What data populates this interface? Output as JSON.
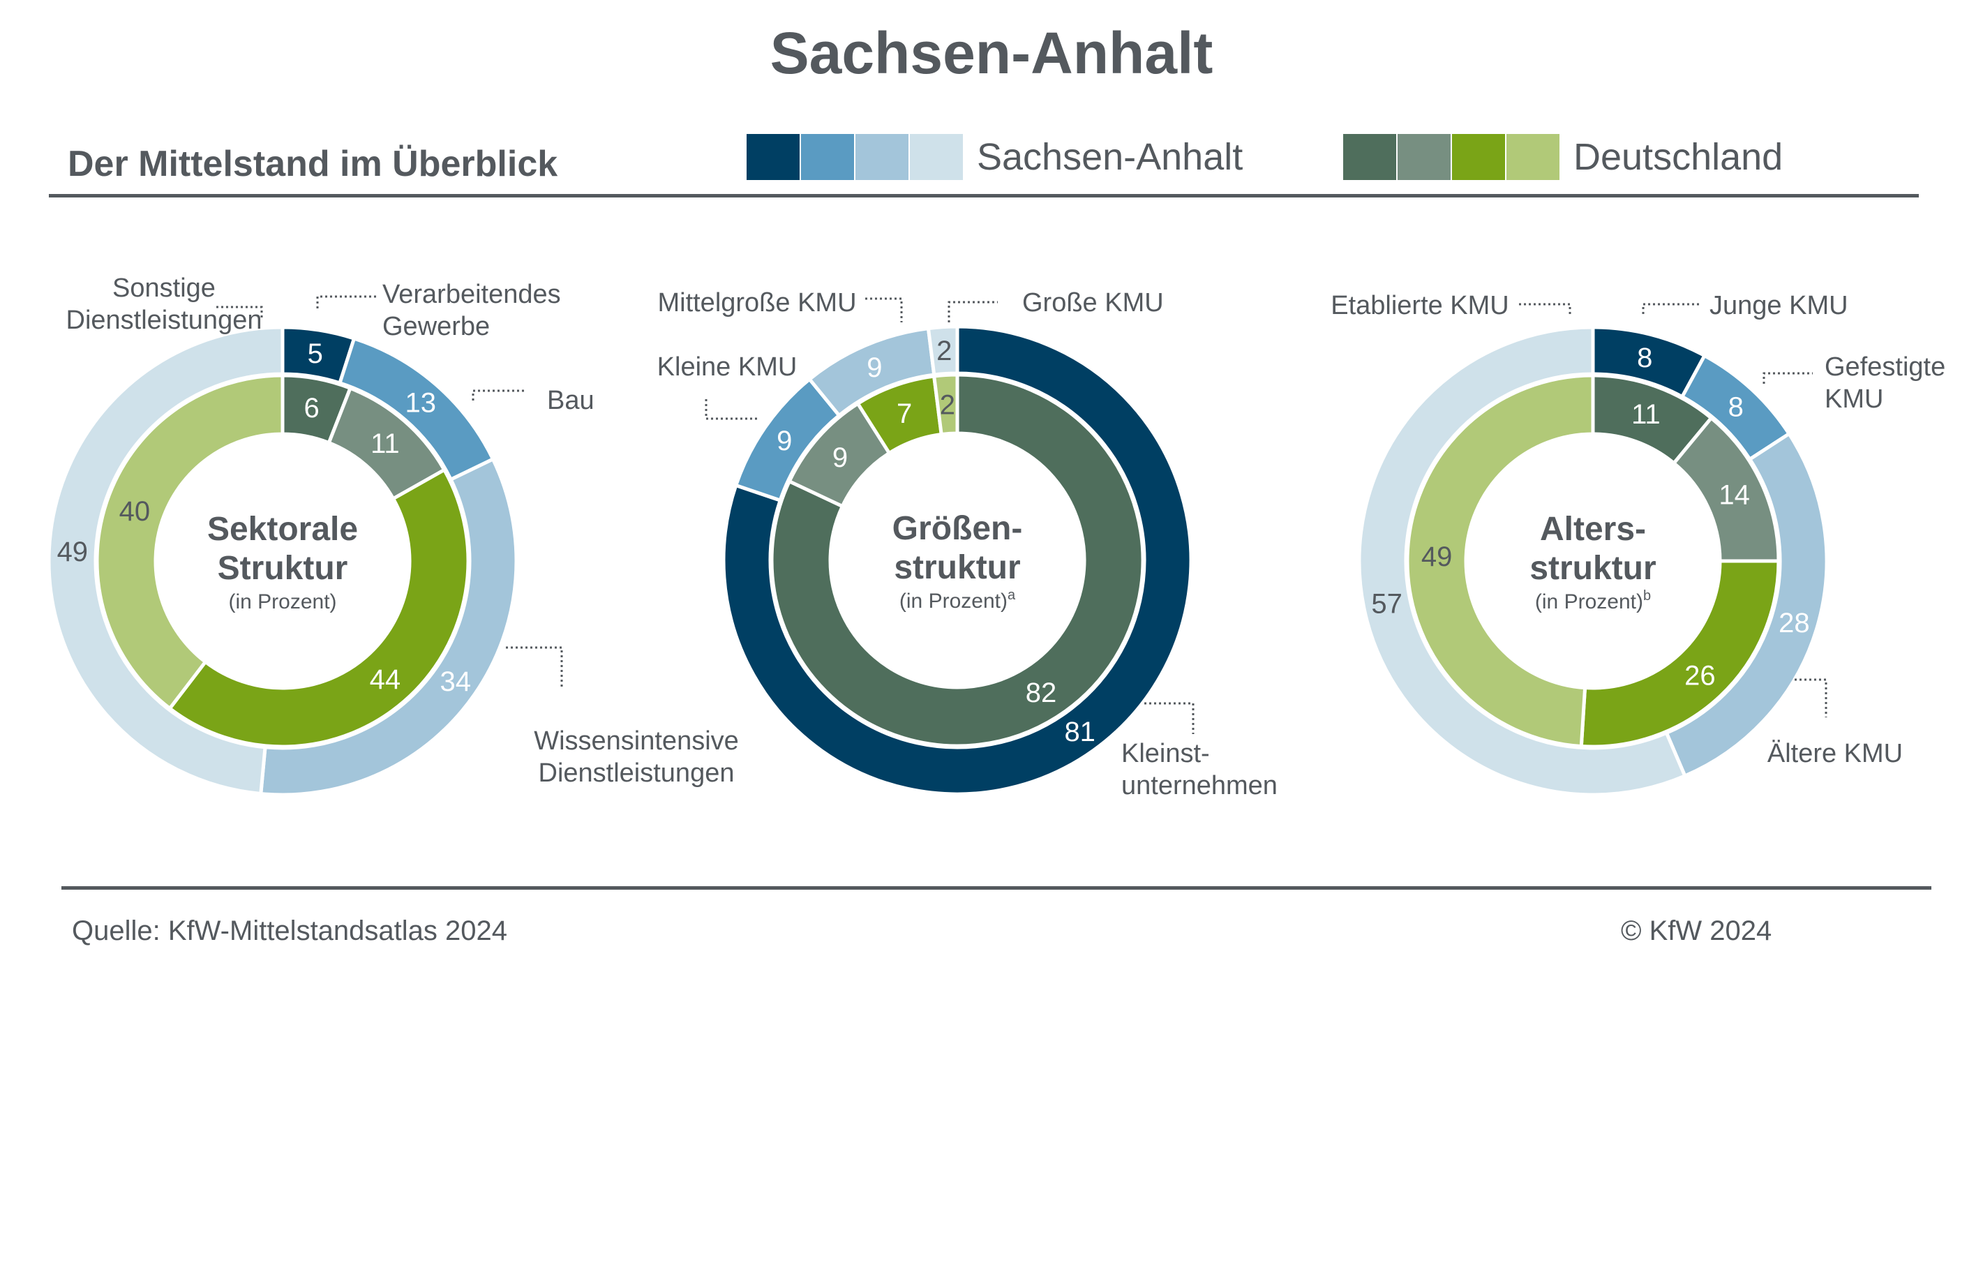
{
  "header": {
    "title": "Sachsen-Anhalt",
    "subtitle": "Der Mittelstand im Überblick"
  },
  "legend": [
    {
      "label": "Sachsen-Anhalt",
      "colors": [
        "#003f63",
        "#5a9bc2",
        "#a3c5da",
        "#cfe1ea"
      ]
    },
    {
      "label": "Deutschland",
      "colors": [
        "#4f6e5c",
        "#778f81",
        "#7aa417",
        "#b1c978"
      ]
    }
  ],
  "footer": {
    "source": "Quelle: KfW-Mittelstandsatlas 2024",
    "copyright": "© KfW 2024"
  },
  "chart_data": [
    {
      "type": "donut",
      "center_title": [
        "Sektorale",
        "Struktur"
      ],
      "center_unit": "(in Prozent)",
      "center_unit_sup": "",
      "categories": [
        "Verarbeitendes Gewerbe",
        "Bau",
        "Wissensintensive Dienstleistungen",
        "Sonstige Dienstleistungen"
      ],
      "series": [
        {
          "name": "Sachsen-Anhalt",
          "ring": "outer",
          "values": [
            5,
            13,
            34,
            49
          ],
          "colors": [
            "#003f63",
            "#5a9bc2",
            "#a3c5da",
            "#cfe1ea"
          ],
          "label_colors": [
            "#ffffff",
            "#ffffff",
            "#ffffff",
            "#54595e"
          ]
        },
        {
          "name": "Deutschland",
          "ring": "inner",
          "values": [
            6,
            11,
            44,
            40
          ],
          "colors": [
            "#4f6e5c",
            "#778f81",
            "#7aa417",
            "#b1c978"
          ],
          "label_colors": [
            "#ffffff",
            "#ffffff",
            "#ffffff",
            "#54595e"
          ]
        }
      ],
      "category_labels": [
        [
          "Verarbeitendes",
          "Gewerbe"
        ],
        [
          "Bau"
        ],
        [
          "Wissensintensive",
          "Dienstleistungen"
        ],
        [
          "Sonstige",
          "Dienstleistungen"
        ]
      ]
    },
    {
      "type": "donut",
      "center_title": [
        "Größen-",
        "struktur"
      ],
      "center_unit": "(in Prozent)",
      "center_unit_sup": "a",
      "categories": [
        "Kleinstunternehmen",
        "Kleine KMU",
        "Mittelgroße KMU",
        "Große KMU"
      ],
      "series": [
        {
          "name": "Sachsen-Anhalt",
          "ring": "outer",
          "values": [
            81,
            9,
            9,
            2
          ],
          "colors": [
            "#003f63",
            "#5a9bc2",
            "#a3c5da",
            "#cfe1ea"
          ],
          "label_colors": [
            "#ffffff",
            "#ffffff",
            "#ffffff",
            "#54595e"
          ]
        },
        {
          "name": "Deutschland",
          "ring": "inner",
          "values": [
            82,
            9,
            7,
            2
          ],
          "colors": [
            "#4f6e5c",
            "#778f81",
            "#7aa417",
            "#b1c978"
          ],
          "label_colors": [
            "#ffffff",
            "#ffffff",
            "#ffffff",
            "#54595e"
          ]
        }
      ],
      "category_labels": [
        [
          "Kleinst-",
          "unternehmen"
        ],
        [
          "Kleine KMU"
        ],
        [
          "Mittelgroße KMU"
        ],
        [
          "Große KMU"
        ]
      ]
    },
    {
      "type": "donut",
      "center_title": [
        "Alters-",
        "struktur"
      ],
      "center_unit": "(in Prozent)",
      "center_unit_sup": "b",
      "categories": [
        "Junge KMU",
        "Gefestigte KMU",
        "Ältere KMU",
        "Etablierte KMU"
      ],
      "series": [
        {
          "name": "Sachsen-Anhalt",
          "ring": "outer",
          "values": [
            8,
            8,
            28,
            57
          ],
          "colors": [
            "#003f63",
            "#5a9bc2",
            "#a3c5da",
            "#cfe1ea"
          ],
          "label_colors": [
            "#ffffff",
            "#ffffff",
            "#ffffff",
            "#54595e"
          ]
        },
        {
          "name": "Deutschland",
          "ring": "inner",
          "values": [
            11,
            14,
            26,
            49
          ],
          "colors": [
            "#4f6e5c",
            "#778f81",
            "#7aa417",
            "#b1c978"
          ],
          "label_colors": [
            "#ffffff",
            "#ffffff",
            "#ffffff",
            "#54595e"
          ]
        }
      ],
      "category_labels": [
        [
          "Junge KMU"
        ],
        [
          "Gefestigte",
          "KMU"
        ],
        [
          "Ältere KMU"
        ],
        [
          "Etablierte KMU"
        ]
      ]
    }
  ]
}
